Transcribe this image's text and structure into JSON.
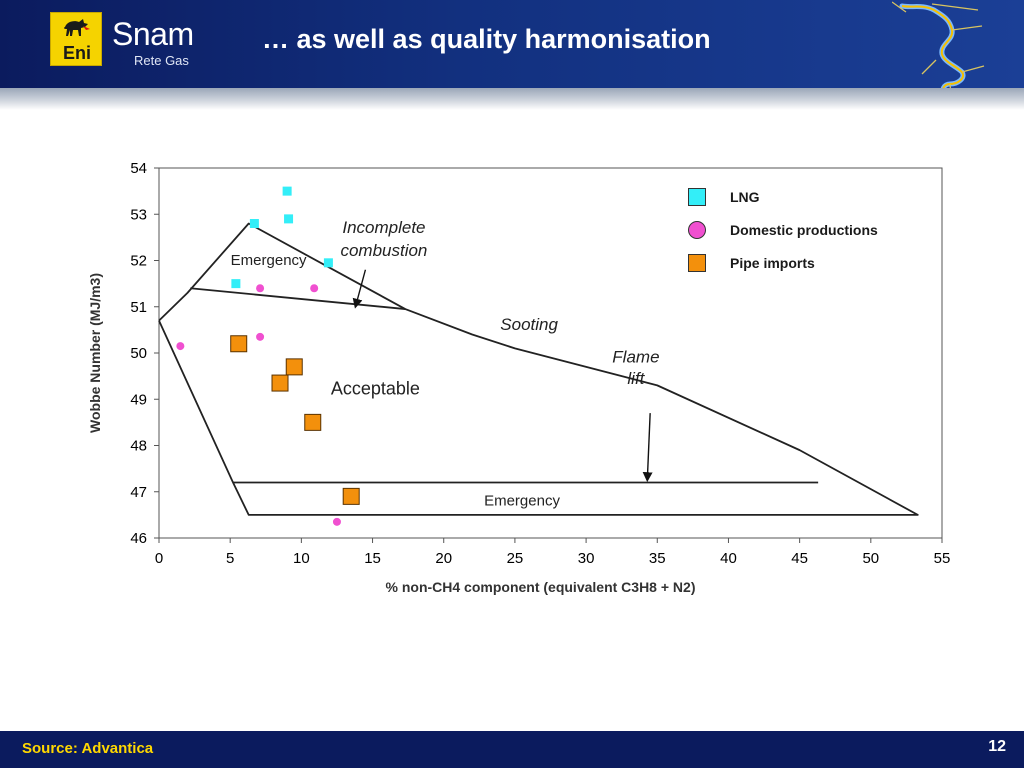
{
  "header": {
    "title": "… as well as quality harmonisation",
    "logo_eni_text": "Eni",
    "logo_snam_text": "Snam",
    "logo_rete_gas_text": "Rete Gas"
  },
  "footer": {
    "source": "Source: Advantica",
    "page_number": "12"
  },
  "colors": {
    "header_navy": "#0b1b5e",
    "lng": "#33eef8",
    "domestic": "#f050d0",
    "pipe": "#f3900c",
    "source_yellow": "#ffd800"
  },
  "chart_data": {
    "type": "scatter",
    "xlabel": "% non-CH4 component (equivalent C3H8 + N2)",
    "ylabel": "Wobbe Number (MJ/m3)",
    "xlim": [
      0,
      55
    ],
    "ylim": [
      46,
      54
    ],
    "xticks": [
      0,
      5,
      10,
      15,
      20,
      25,
      30,
      35,
      40,
      45,
      50,
      55
    ],
    "yticks": [
      46,
      47,
      48,
      49,
      50,
      51,
      52,
      53,
      54
    ],
    "legend_position": "top-right",
    "series": [
      {
        "name": "LNG",
        "marker": "square",
        "color": "#33eef8",
        "points": [
          [
            9,
            53.5
          ],
          [
            6.7,
            52.8
          ],
          [
            9.1,
            52.9
          ],
          [
            11.9,
            51.95
          ],
          [
            5.4,
            51.5
          ]
        ]
      },
      {
        "name": "Domestic productions",
        "marker": "circle",
        "color": "#f050d0",
        "points": [
          [
            7.1,
            51.4
          ],
          [
            10.9,
            51.4
          ],
          [
            7.1,
            50.35
          ],
          [
            1.5,
            50.15
          ],
          [
            12.5,
            46.35
          ]
        ]
      },
      {
        "name": "Pipe imports",
        "marker": "square",
        "color": "#f3900c",
        "points": [
          [
            5.6,
            50.2
          ],
          [
            9.5,
            49.7
          ],
          [
            8.5,
            49.35
          ],
          [
            10.8,
            48.5
          ],
          [
            13.5,
            46.9
          ]
        ]
      }
    ],
    "boundaries": [
      {
        "points": [
          [
            0,
            50.7
          ],
          [
            2,
            51.3
          ],
          [
            6.3,
            52.8
          ],
          [
            17.3,
            50.95
          ],
          [
            22,
            50.4
          ],
          [
            25,
            50.1
          ],
          [
            35,
            49.3
          ],
          [
            45,
            47.9
          ],
          [
            53.3,
            46.5
          ],
          [
            6.3,
            46.5
          ],
          [
            5.2,
            47.2
          ],
          [
            0,
            50.7
          ]
        ]
      },
      {
        "points": [
          [
            2.2,
            51.4
          ],
          [
            17.3,
            50.95
          ]
        ]
      },
      {
        "points": [
          [
            5.2,
            47.2
          ],
          [
            46.3,
            47.2
          ]
        ]
      }
    ],
    "region_labels": [
      {
        "text": "Emergency",
        "x": 7.7,
        "y": 51.9,
        "size": 15,
        "style": "normal"
      },
      {
        "text": "Incomplete",
        "x": 15.8,
        "y": 52.6,
        "size": 17,
        "style": "italic"
      },
      {
        "text": "combustion",
        "x": 15.8,
        "y": 52.1,
        "size": 17,
        "style": "italic"
      },
      {
        "text": "Sooting",
        "x": 26,
        "y": 50.5,
        "size": 17,
        "style": "italic"
      },
      {
        "text": "Flame",
        "x": 33.5,
        "y": 49.8,
        "size": 17,
        "style": "italic"
      },
      {
        "text": "lift",
        "x": 33.5,
        "y": 49.33,
        "size": 17,
        "style": "italic"
      },
      {
        "text": "Acceptable",
        "x": 15.2,
        "y": 49.1,
        "size": 18,
        "style": "normal"
      },
      {
        "text": "Emergency",
        "x": 25.5,
        "y": 46.7,
        "size": 15,
        "style": "normal"
      }
    ],
    "arrows": [
      {
        "from": [
          14.5,
          51.8
        ],
        "to": [
          13.8,
          51.0
        ]
      },
      {
        "from": [
          34.5,
          48.7
        ],
        "to": [
          34.3,
          47.25
        ]
      }
    ]
  }
}
